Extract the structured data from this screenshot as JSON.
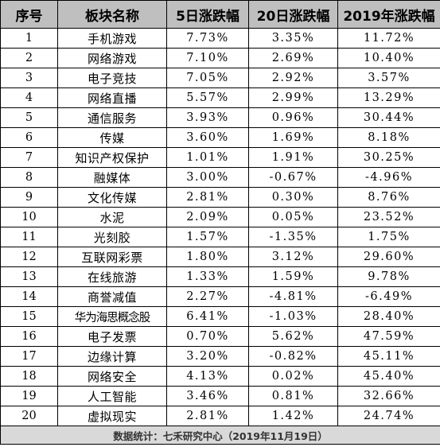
{
  "table": {
    "headers": [
      "序号",
      "板块名称",
      "5日涨跌幅",
      "20日涨跌幅",
      "2019年涨跌幅"
    ],
    "rows": [
      {
        "idx": "1",
        "name": "手机游戏",
        "d5": "7.73%",
        "d20": "3.35%",
        "ytd": "11.72%"
      },
      {
        "idx": "2",
        "name": "网络游戏",
        "d5": "7.10%",
        "d20": "2.69%",
        "ytd": "10.40%"
      },
      {
        "idx": "3",
        "name": "电子竞技",
        "d5": "7.05%",
        "d20": "2.92%",
        "ytd": "3.57%"
      },
      {
        "idx": "4",
        "name": "网络直播",
        "d5": "5.57%",
        "d20": "2.99%",
        "ytd": "13.29%"
      },
      {
        "idx": "5",
        "name": "通信服务",
        "d5": "3.93%",
        "d20": "0.96%",
        "ytd": "30.44%"
      },
      {
        "idx": "6",
        "name": "传媒",
        "d5": "3.60%",
        "d20": "1.69%",
        "ytd": "8.18%"
      },
      {
        "idx": "7",
        "name": "知识产权保护",
        "d5": "1.01%",
        "d20": "1.91%",
        "ytd": "30.25%"
      },
      {
        "idx": "8",
        "name": "融媒体",
        "d5": "3.00%",
        "d20": "-0.67%",
        "ytd": "-4.96%"
      },
      {
        "idx": "9",
        "name": "文化传媒",
        "d5": "2.81%",
        "d20": "0.30%",
        "ytd": "8.76%"
      },
      {
        "idx": "10",
        "name": "水泥",
        "d5": "2.09%",
        "d20": "0.05%",
        "ytd": "23.52%"
      },
      {
        "idx": "11",
        "name": "光刻胶",
        "d5": "1.57%",
        "d20": "-1.35%",
        "ytd": "1.75%"
      },
      {
        "idx": "12",
        "name": "互联网彩票",
        "d5": "1.80%",
        "d20": "3.12%",
        "ytd": "29.60%"
      },
      {
        "idx": "13",
        "name": "在线旅游",
        "d5": "1.33%",
        "d20": "1.59%",
        "ytd": "9.78%"
      },
      {
        "idx": "14",
        "name": "商誉减值",
        "d5": "2.27%",
        "d20": "-4.81%",
        "ytd": "-6.49%"
      },
      {
        "idx": "15",
        "name": "华为海思概念股",
        "d5": "6.41%",
        "d20": "-1.03%",
        "ytd": "28.40%"
      },
      {
        "idx": "16",
        "name": "电子发票",
        "d5": "0.70%",
        "d20": "5.62%",
        "ytd": "47.59%"
      },
      {
        "idx": "17",
        "name": "边缘计算",
        "d5": "3.20%",
        "d20": "-0.82%",
        "ytd": "45.11%"
      },
      {
        "idx": "18",
        "name": "网络安全",
        "d5": "4.13%",
        "d20": "0.02%",
        "ytd": "45.40%"
      },
      {
        "idx": "19",
        "name": "人工智能",
        "d5": "3.46%",
        "d20": "0.81%",
        "ytd": "32.66%"
      },
      {
        "idx": "20",
        "name": "虚拟现实",
        "d5": "2.81%",
        "d20": "1.42%",
        "ytd": "24.74%"
      }
    ],
    "footer": "数据统计：七禾研究中心（2019年11月19日）"
  },
  "colors": {
    "header_bg": "#bfbfbf",
    "footer_bg": "#d9d9d9",
    "border": "#000000"
  }
}
